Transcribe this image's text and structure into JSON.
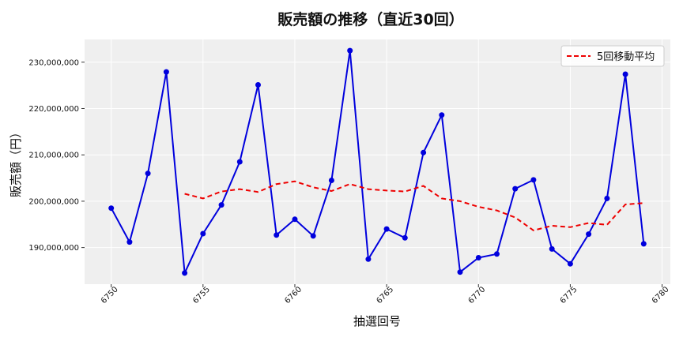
{
  "chart_data": {
    "type": "line",
    "title": "販売額の推移（直近30回）",
    "xlabel": "抽選回号",
    "ylabel": "販売額（円）",
    "x": [
      6750,
      6751,
      6752,
      6753,
      6754,
      6755,
      6756,
      6757,
      6758,
      6759,
      6760,
      6761,
      6762,
      6763,
      6764,
      6765,
      6766,
      6767,
      6768,
      6769,
      6770,
      6771,
      6772,
      6773,
      6774,
      6775,
      6776,
      6777,
      6778,
      6779
    ],
    "series": [
      {
        "name": "",
        "color": "#0000dd",
        "style": "solid",
        "marker": "circle",
        "values": [
          198500000,
          191200000,
          206000000,
          227900000,
          184500000,
          193000000,
          199200000,
          208500000,
          225100000,
          192700000,
          196100000,
          192500000,
          204500000,
          232500000,
          187500000,
          194000000,
          192100000,
          210500000,
          218600000,
          184700000,
          187800000,
          188600000,
          202700000,
          204600000,
          189700000,
          186500000,
          192900000,
          200600000,
          227400000,
          190800000
        ]
      },
      {
        "name": "5回移動平均",
        "color": "#ee0000",
        "style": "dashed",
        "marker": "none",
        "values": [
          null,
          null,
          null,
          null,
          201600000,
          200600000,
          202100000,
          202600000,
          202000000,
          203700000,
          204300000,
          203000000,
          202200000,
          203700000,
          202600000,
          202300000,
          202100000,
          203300000,
          200600000,
          200000000,
          198800000,
          198000000,
          196500000,
          193700000,
          194700000,
          194400000,
          195300000,
          194900000,
          199300000,
          199600000
        ]
      }
    ],
    "xticks": [
      6750,
      6755,
      6760,
      6765,
      6770,
      6775,
      6780
    ],
    "yticks": [
      190000000,
      200000000,
      210000000,
      220000000,
      230000000
    ],
    "ytick_labels": [
      "190,000,000",
      "200,000,000",
      "210,000,000",
      "220,000,000",
      "230,000,000"
    ],
    "xlim": [
      6748.55,
      6780.45
    ],
    "ylim": [
      182100000,
      234900000
    ],
    "grid": true,
    "legend": "top-right",
    "legend_entries": [
      "5回移動平均"
    ],
    "background": "#efefef"
  }
}
